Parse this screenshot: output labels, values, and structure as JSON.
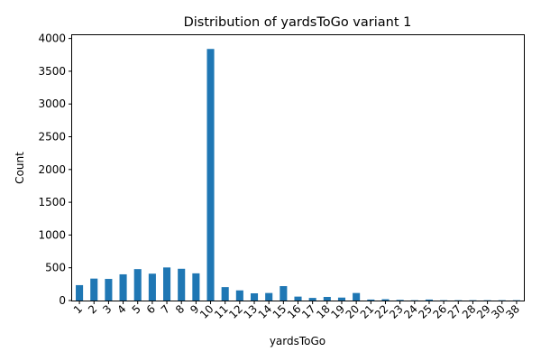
{
  "chart_data": {
    "type": "bar",
    "title": "Distribution of yardsToGo variant 1",
    "xlabel": "yardsToGo",
    "ylabel": "Count",
    "categories": [
      "1",
      "2",
      "3",
      "4",
      "5",
      "6",
      "7",
      "8",
      "9",
      "10",
      "11",
      "12",
      "13",
      "14",
      "15",
      "16",
      "17",
      "18",
      "19",
      "20",
      "21",
      "22",
      "23",
      "24",
      "25",
      "26",
      "27",
      "28",
      "29",
      "30",
      "38"
    ],
    "values": [
      235,
      335,
      330,
      400,
      480,
      410,
      505,
      485,
      415,
      3840,
      205,
      155,
      110,
      115,
      220,
      60,
      40,
      55,
      45,
      115,
      15,
      20,
      10,
      5,
      15,
      5,
      5,
      5,
      5,
      5,
      5
    ],
    "ylim": [
      0,
      4050
    ],
    "yticks": [
      0,
      500,
      1000,
      1500,
      2000,
      2500,
      3000,
      3500,
      4000
    ],
    "ytick_labels": [
      "0",
      "500",
      "1000",
      "1500",
      "2000",
      "2500",
      "3000",
      "3500",
      "4000"
    ],
    "bar_color": "#1f77b4",
    "grid": false,
    "legend": "none"
  }
}
